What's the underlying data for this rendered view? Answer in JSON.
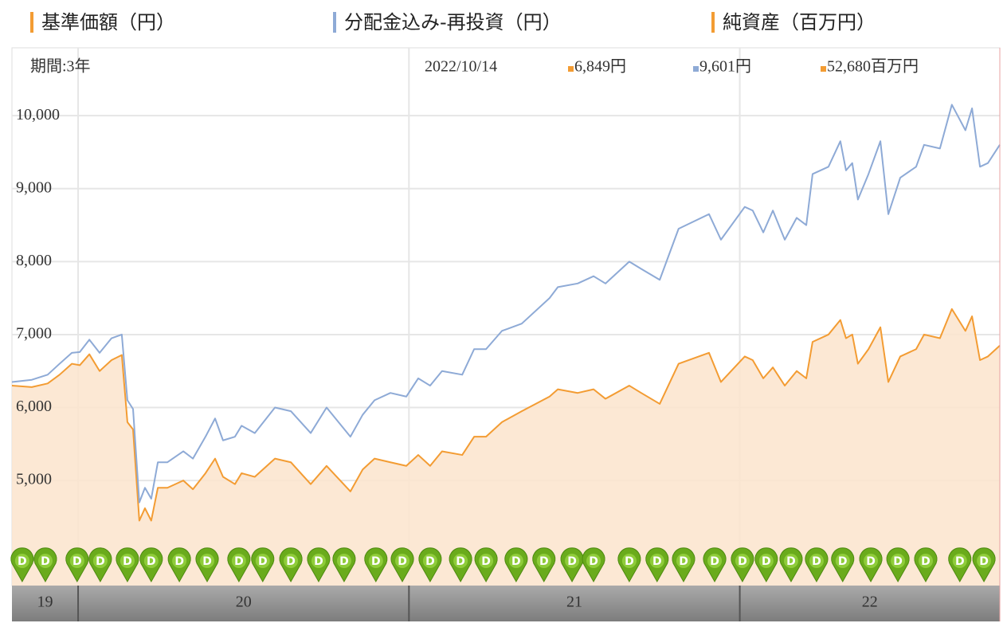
{
  "chart_data": {
    "type": "line",
    "period": "期間:3年",
    "date": "2022/10/14",
    "x": [
      2019.8,
      2019.86,
      2019.908,
      2019.944,
      2019.981,
      2020.005,
      2020.034,
      2020.065,
      2020.101,
      2020.132,
      2020.149,
      2020.166,
      2020.185,
      2020.202,
      2020.221,
      2020.241,
      2020.27,
      2020.318,
      2020.347,
      2020.385,
      2020.414,
      2020.438,
      2020.474,
      2020.494,
      2020.534,
      2020.595,
      2020.643,
      2020.703,
      2020.751,
      2020.823,
      2020.86,
      2020.896,
      2020.944,
      2020.992,
      2021.028,
      2021.064,
      2021.1,
      2021.161,
      2021.197,
      2021.233,
      2021.281,
      2021.341,
      2021.425,
      2021.45,
      2021.51,
      2021.558,
      2021.594,
      2021.666,
      2021.702,
      2021.758,
      2021.815,
      2021.907,
      2021.943,
      2022.015,
      2022.039,
      2022.071,
      2022.1,
      2022.136,
      2022.172,
      2022.201,
      2022.22,
      2022.268,
      2022.304,
      2022.321,
      2022.34,
      2022.357,
      2022.389,
      2022.425,
      2022.449,
      2022.485,
      2022.533,
      2022.557,
      2022.605,
      2022.641,
      2022.682,
      2022.702,
      2022.726,
      2022.75,
      2022.786
    ],
    "series": [
      {
        "name": "基準価額（円）",
        "color": "#f39c33",
        "fill": "#fbe4cc",
        "latest_label": "6,849円",
        "values": [
          6300,
          6280,
          6330,
          6450,
          6600,
          6580,
          6730,
          6500,
          6650,
          6720,
          5800,
          5700,
          4450,
          4620,
          4450,
          4900,
          4900,
          5000,
          4880,
          5100,
          5300,
          5050,
          4950,
          5100,
          5050,
          5300,
          5250,
          4950,
          5200,
          4850,
          5150,
          5300,
          5250,
          5200,
          5350,
          5200,
          5400,
          5350,
          5600,
          5600,
          5800,
          5950,
          6150,
          6250,
          6200,
          6250,
          6120,
          6300,
          6200,
          6050,
          6600,
          6750,
          6350,
          6700,
          6650,
          6400,
          6550,
          6300,
          6500,
          6400,
          6900,
          7000,
          7200,
          6950,
          7000,
          6600,
          6800,
          7100,
          6350,
          6700,
          6800,
          7000,
          6950,
          7350,
          7050,
          7250,
          6650,
          6700,
          6849
        ]
      },
      {
        "name": "分配金込み-再投資（円）",
        "color": "#8eaad6",
        "latest_label": "9,601円",
        "values": [
          6350,
          6380,
          6450,
          6600,
          6750,
          6760,
          6930,
          6750,
          6950,
          7000,
          6100,
          5980,
          4700,
          4900,
          4750,
          5250,
          5250,
          5400,
          5300,
          5600,
          5850,
          5550,
          5600,
          5750,
          5650,
          6000,
          5950,
          5650,
          6000,
          5600,
          5900,
          6100,
          6200,
          6150,
          6400,
          6300,
          6500,
          6450,
          6800,
          6800,
          7050,
          7150,
          7500,
          7650,
          7700,
          7800,
          7700,
          8000,
          7900,
          7750,
          8450,
          8650,
          8300,
          8750,
          8700,
          8400,
          8700,
          8300,
          8600,
          8500,
          9200,
          9300,
          9650,
          9250,
          9350,
          8850,
          9200,
          9650,
          8650,
          9150,
          9300,
          9600,
          9550,
          10150,
          9800,
          10100,
          9300,
          9350,
          9601
        ]
      }
    ],
    "net_assets": {
      "name": "純資産（百万円）",
      "color": "#f39c33",
      "latest_label": "52,680百万円"
    },
    "xlim": [
      2019.8,
      2022.786
    ],
    "xticks": [
      {
        "value": 2019,
        "label": "19"
      },
      {
        "value": 2020,
        "label": "20"
      },
      {
        "value": 2021,
        "label": "21"
      },
      {
        "value": 2022,
        "label": "22"
      }
    ],
    "ylim": [
      3560,
      10930
    ],
    "yticks": [
      {
        "value": 5000,
        "label": "5,000"
      },
      {
        "value": 6000,
        "label": "6,000"
      },
      {
        "value": 7000,
        "label": "7,000"
      },
      {
        "value": 8000,
        "label": "8,000"
      },
      {
        "value": 9000,
        "label": "9,000"
      },
      {
        "value": 10000,
        "label": "10,000"
      }
    ],
    "grid": true,
    "distribution_marks": {
      "label": "D",
      "color": "#6aab1c",
      "x": [
        2019.831,
        2019.901,
        2019.997,
        2020.067,
        2020.149,
        2020.221,
        2020.306,
        2020.39,
        2020.486,
        2020.558,
        2020.643,
        2020.727,
        2020.804,
        2020.9,
        2020.98,
        2021.064,
        2021.156,
        2021.233,
        2021.324,
        2021.408,
        2021.493,
        2021.558,
        2021.666,
        2021.75,
        2021.83,
        2021.924,
        2022.008,
        2022.08,
        2022.155,
        2022.232,
        2022.311,
        2022.396,
        2022.478,
        2022.562,
        2022.665,
        2022.738
      ]
    }
  }
}
